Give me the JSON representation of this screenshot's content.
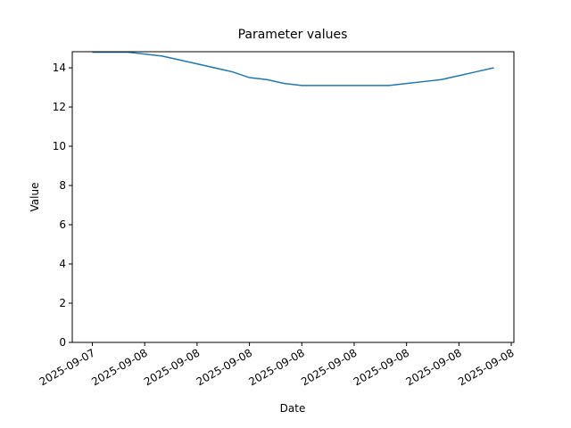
{
  "chart_data": {
    "type": "line",
    "title": "Parameter values",
    "x_label": "Date",
    "y_label": "Value",
    "x": [
      0,
      2,
      4,
      6,
      8,
      9,
      10,
      11,
      12,
      13,
      14,
      15,
      16,
      17,
      18,
      19,
      20,
      21,
      22,
      23
    ],
    "series": [
      {
        "name": "Value",
        "color": "#1f77b4",
        "values": [
          14.8,
          14.8,
          14.6,
          14.2,
          13.8,
          13.5,
          13.4,
          13.2,
          13.1,
          13.1,
          13.1,
          13.1,
          13.1,
          13.1,
          13.2,
          13.3,
          13.4,
          13.6,
          13.8,
          14.0
        ]
      }
    ],
    "xlim": [
      -1.15,
      24.15
    ],
    "xticks": [
      {
        "value": 0,
        "label": "2025-09-07"
      },
      {
        "value": 3,
        "label": "2025-09-08"
      },
      {
        "value": 6,
        "label": "2025-09-08"
      },
      {
        "value": 9,
        "label": "2025-09-08"
      },
      {
        "value": 12,
        "label": "2025-09-08"
      },
      {
        "value": 15,
        "label": "2025-09-08"
      },
      {
        "value": 18,
        "label": "2025-09-08"
      },
      {
        "value": 21,
        "label": "2025-09-08"
      },
      {
        "value": 24,
        "label": "2025-09-08"
      }
    ],
    "ylim": [
      0,
      14.82
    ],
    "yticks": [
      0,
      2,
      4,
      6,
      8,
      10,
      12,
      14
    ],
    "grid": false
  }
}
